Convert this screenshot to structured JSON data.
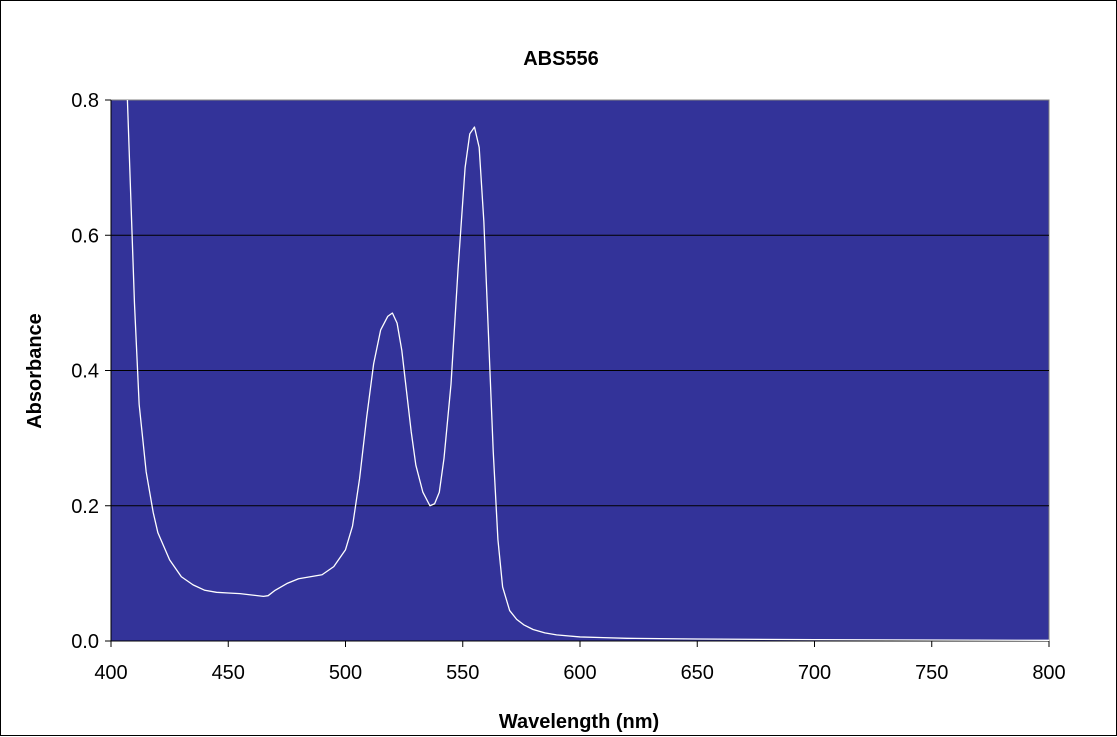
{
  "chart_data": {
    "type": "line",
    "title": "ABS556",
    "xlabel": "Wavelength (nm)",
    "ylabel": "Absorbance",
    "xlim": [
      400,
      800
    ],
    "ylim": [
      0,
      0.8
    ],
    "x_ticks": [
      400,
      450,
      500,
      550,
      600,
      650,
      700,
      750,
      800
    ],
    "x_tick_labels": [
      "400",
      "450",
      "500",
      "550",
      "600",
      "650",
      "700",
      "750",
      "800"
    ],
    "y_ticks": [
      0,
      0.2,
      0.4,
      0.6,
      0.8
    ],
    "y_tick_labels": [
      "0.0",
      "0.2",
      "0.4",
      "0.6",
      "0.8"
    ],
    "grid": "horizontal",
    "legend": "none",
    "colors": {
      "plot_background": "#333399",
      "line": "#ffffff",
      "gridline": "#000000"
    },
    "series": [
      {
        "x": [
          407,
          408,
          410,
          412,
          415,
          418,
          420,
          425,
          430,
          435,
          440,
          445,
          450,
          455,
          460,
          465,
          467,
          470,
          475,
          480,
          485,
          490,
          495,
          500,
          503,
          506,
          509,
          512,
          515,
          518,
          520,
          522,
          524,
          526,
          528,
          530,
          533,
          536,
          538,
          540,
          542,
          545,
          548,
          551,
          553,
          555,
          557,
          559,
          561,
          563,
          565,
          567,
          570,
          573,
          576,
          580,
          585,
          590,
          600,
          610,
          620,
          650,
          700,
          750,
          800
        ],
        "y": [
          0.8,
          0.7,
          0.5,
          0.35,
          0.25,
          0.19,
          0.16,
          0.12,
          0.095,
          0.083,
          0.075,
          0.072,
          0.071,
          0.07,
          0.068,
          0.066,
          0.067,
          0.075,
          0.085,
          0.092,
          0.095,
          0.098,
          0.11,
          0.135,
          0.17,
          0.24,
          0.33,
          0.41,
          0.46,
          0.48,
          0.485,
          0.47,
          0.43,
          0.37,
          0.31,
          0.26,
          0.22,
          0.2,
          0.203,
          0.22,
          0.27,
          0.38,
          0.55,
          0.7,
          0.75,
          0.76,
          0.73,
          0.62,
          0.45,
          0.28,
          0.15,
          0.08,
          0.045,
          0.032,
          0.024,
          0.017,
          0.012,
          0.009,
          0.006,
          0.005,
          0.004,
          0.003,
          0.002,
          0.0015,
          0.001
        ]
      }
    ]
  }
}
